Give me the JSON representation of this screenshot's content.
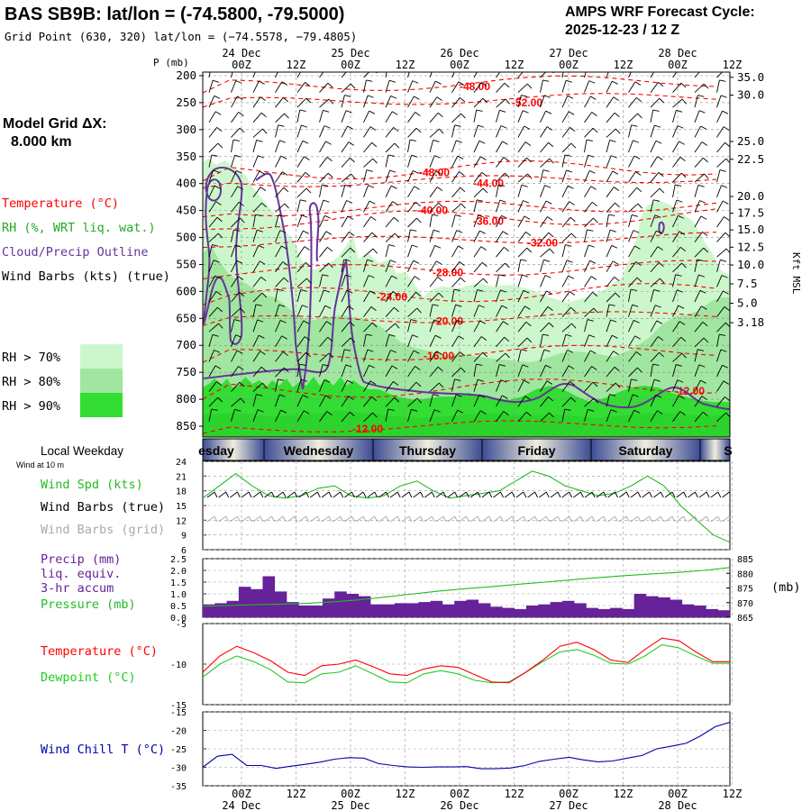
{
  "header": {
    "station_title": "BAS SB9B:  lat/lon = (-74.5800, -79.5000)",
    "grid_point": "Grid Point (630, 320) lat/lon = (−74.5578, −79.4805)",
    "cycle_label": "AMPS WRF Forecast Cycle:",
    "cycle_value": "2025-12-23 / 12  Z"
  },
  "model_grid": {
    "label": "Model Grid ΔX:",
    "value": "8.000 km"
  },
  "legend": {
    "temperature": "Temperature (°C)",
    "rh": "RH (%, WRT liq. wat.)",
    "cloud": "Cloud/Precip Outline",
    "wind_barbs": "Wind Barbs (kts) (true)",
    "rh70": "RH > 70%",
    "rh80": "RH > 80%",
    "rh90": "RH > 90%"
  },
  "colors": {
    "temperature": "#ff0000",
    "rh70": "#ccf7cc",
    "rh80": "#a0e6a0",
    "rh90": "#33dd33",
    "cloud": "#663399",
    "wind_spd": "#22bb22",
    "precip": "#662299",
    "pressure": "#22bb22",
    "dewpoint": "#22cc22",
    "wind_chill": "#0000aa",
    "grid_barbs": "#aaaaaa"
  },
  "time_axis": {
    "hours": [
      "00Z",
      "12Z",
      "00Z",
      "12Z",
      "00Z",
      "12Z",
      "00Z",
      "12Z",
      "00Z",
      "12Z"
    ],
    "dates": [
      "24 Dec",
      "25 Dec",
      "26 Dec",
      "27 Dec",
      "28 Dec"
    ]
  },
  "weekday_strip": {
    "label": "Local Weekday",
    "days": [
      "esday",
      "Wednesday",
      "Thursday",
      "Friday",
      "Saturday",
      "S"
    ]
  },
  "surface": {
    "note": "Wind at 10 m",
    "wind_spd_label": "Wind Spd (kts)",
    "wind_barbs_true": "Wind Barbs (true)",
    "wind_barbs_grid": "Wind Barbs (grid)",
    "precip_label_1": "Precip (mm)",
    "precip_label_2": "liq. equiv.",
    "precip_label_3": "3-hr accum",
    "pressure_label": "Pressure (mb)",
    "pressure_unit": "(mb)",
    "temperature_label": "Temperature (°C)",
    "dewpoint_label": "Dewpoint (°C)",
    "wind_chill_label": "Wind Chill T (°C)"
  },
  "chart_data": [
    {
      "type": "heatmap",
      "panel": "vertical time-height cross section",
      "ylabel": "P (mb)",
      "ylabel_right": "Kft MSL",
      "pressure_ticks": [
        200,
        250,
        300,
        350,
        400,
        450,
        500,
        550,
        600,
        650,
        700,
        750,
        800,
        850
      ],
      "height_ticks": [
        {
          "p": 203,
          "label": "35.0"
        },
        {
          "p": 236,
          "label": "30.0"
        },
        {
          "p": 322,
          "label": "25.0"
        },
        {
          "p": 355,
          "label": "22.5"
        },
        {
          "p": 424,
          "label": "20.0"
        },
        {
          "p": 455,
          "label": "17.5"
        },
        {
          "p": 486,
          "label": "15.0"
        },
        {
          "p": 518,
          "label": "12.5"
        },
        {
          "p": 551,
          "label": "10.0"
        },
        {
          "p": 586,
          "label": "7.5"
        },
        {
          "p": 622,
          "label": "5.0"
        },
        {
          "p": 658,
          "label": "3.18"
        }
      ],
      "temperature_contours": [
        {
          "value": "-52.00",
          "p": 250
        },
        {
          "value": "-48.00",
          "p": 220
        },
        {
          "value": "-48.00",
          "p": 380
        },
        {
          "value": "-44.00",
          "p": 400
        },
        {
          "value": "-40.00",
          "p": 450
        },
        {
          "value": "-36.00",
          "p": 470
        },
        {
          "value": "-32.00",
          "p": 510
        },
        {
          "value": "-28.00",
          "p": 565
        },
        {
          "value": "-24.00",
          "p": 610
        },
        {
          "value": "-20.00",
          "p": 655
        },
        {
          "value": "-16.00",
          "p": 720
        },
        {
          "value": "-12.00",
          "p": 785
        },
        {
          "value": "-12.00",
          "p": 855
        }
      ]
    },
    {
      "type": "line",
      "panel": "10 m wind speed",
      "ylim": [
        6,
        24
      ],
      "yticks": [
        6,
        9,
        12,
        15,
        18,
        21,
        24
      ],
      "series": [
        {
          "name": "Wind Spd (kts)",
          "values": [
            16.5,
            19,
            21.5,
            19,
            17,
            16.5,
            17,
            18.5,
            19,
            17,
            16.5,
            17,
            19,
            20,
            18,
            16.5,
            17,
            17.5,
            18,
            20,
            22,
            21,
            19,
            18,
            17,
            17.5,
            19,
            21,
            19,
            15,
            12,
            9,
            7.5
          ]
        }
      ]
    },
    {
      "type": "bar",
      "panel": "3-hr precip and surface pressure",
      "ylim": [
        0,
        2.5
      ],
      "yticks": [
        0,
        0.5,
        1.0,
        1.5,
        2.0,
        2.5
      ],
      "y2lim": [
        865,
        885
      ],
      "y2ticks": [
        865,
        870,
        875,
        880,
        885
      ],
      "series": [
        {
          "name": "Precip (mm)",
          "values": [
            0.55,
            0.6,
            0.7,
            1.3,
            1.2,
            1.75,
            1.1,
            0.65,
            0.5,
            0.5,
            0.8,
            1.1,
            1.0,
            0.9,
            0.55,
            0.55,
            0.6,
            0.6,
            0.65,
            0.7,
            0.55,
            0.7,
            0.75,
            0.6,
            0.45,
            0.4,
            0.35,
            0.5,
            0.55,
            0.65,
            0.7,
            0.6,
            0.4,
            0.35,
            0.4,
            0.35,
            1.0,
            0.9,
            0.85,
            0.75,
            0.55,
            0.5,
            0.35,
            0.3
          ]
        },
        {
          "name": "Pressure (mb)",
          "values": [
            868.8,
            869,
            869.3,
            869.5,
            869.8,
            870.3,
            871,
            872,
            873,
            874,
            874.8,
            875.5,
            876.3,
            877,
            877.8,
            878.5,
            879.2,
            879.8,
            880.3,
            881,
            882
          ]
        }
      ]
    },
    {
      "type": "line",
      "panel": "temperature and dewpoint",
      "ylim": [
        -15,
        -5
      ],
      "yticks": [
        -15,
        -10,
        -5
      ],
      "series": [
        {
          "name": "Temperature (°C)",
          "values": [
            -11,
            -9,
            -7.8,
            -8.6,
            -9.6,
            -11,
            -11.4,
            -10.2,
            -10,
            -9.5,
            -10.3,
            -11.2,
            -11.4,
            -10.6,
            -10.2,
            -10.4,
            -11.3,
            -12.2,
            -12.3,
            -11,
            -9.5,
            -7.8,
            -7.3,
            -8.2,
            -9.5,
            -9.8,
            -8.2,
            -6.8,
            -7.1,
            -8.5,
            -9.7,
            -9.7
          ]
        },
        {
          "name": "Dewpoint (°C)",
          "values": [
            -11.6,
            -10,
            -9,
            -9.7,
            -10.7,
            -12.2,
            -12.3,
            -11.2,
            -11,
            -10.2,
            -11.2,
            -12.2,
            -12.3,
            -11.2,
            -10.8,
            -11.2,
            -12,
            -12.3,
            -12.2,
            -11,
            -9.7,
            -8.5,
            -8.2,
            -8.9,
            -9.9,
            -10,
            -9,
            -7.6,
            -8,
            -9,
            -9.9,
            -9.9
          ]
        }
      ]
    },
    {
      "type": "line",
      "panel": "wind chill",
      "ylim": [
        -35,
        -15
      ],
      "yticks": [
        -35,
        -30,
        -25,
        -20,
        -15
      ],
      "series": [
        {
          "name": "Wind Chill T (°C)",
          "values": [
            -30,
            -27,
            -26.5,
            -29.5,
            -29.5,
            -30.3,
            -29.7,
            -29.2,
            -28.6,
            -27.8,
            -27.4,
            -27.5,
            -29,
            -29.5,
            -29.9,
            -30,
            -29.9,
            -29.9,
            -29.8,
            -30.4,
            -30.4,
            -30.2,
            -29.5,
            -28.4,
            -27.8,
            -27.3,
            -28,
            -28.5,
            -28.3,
            -27.5,
            -26.8,
            -25,
            -24.3,
            -23.5,
            -21.5,
            -19,
            -17.8
          ]
        }
      ]
    }
  ]
}
